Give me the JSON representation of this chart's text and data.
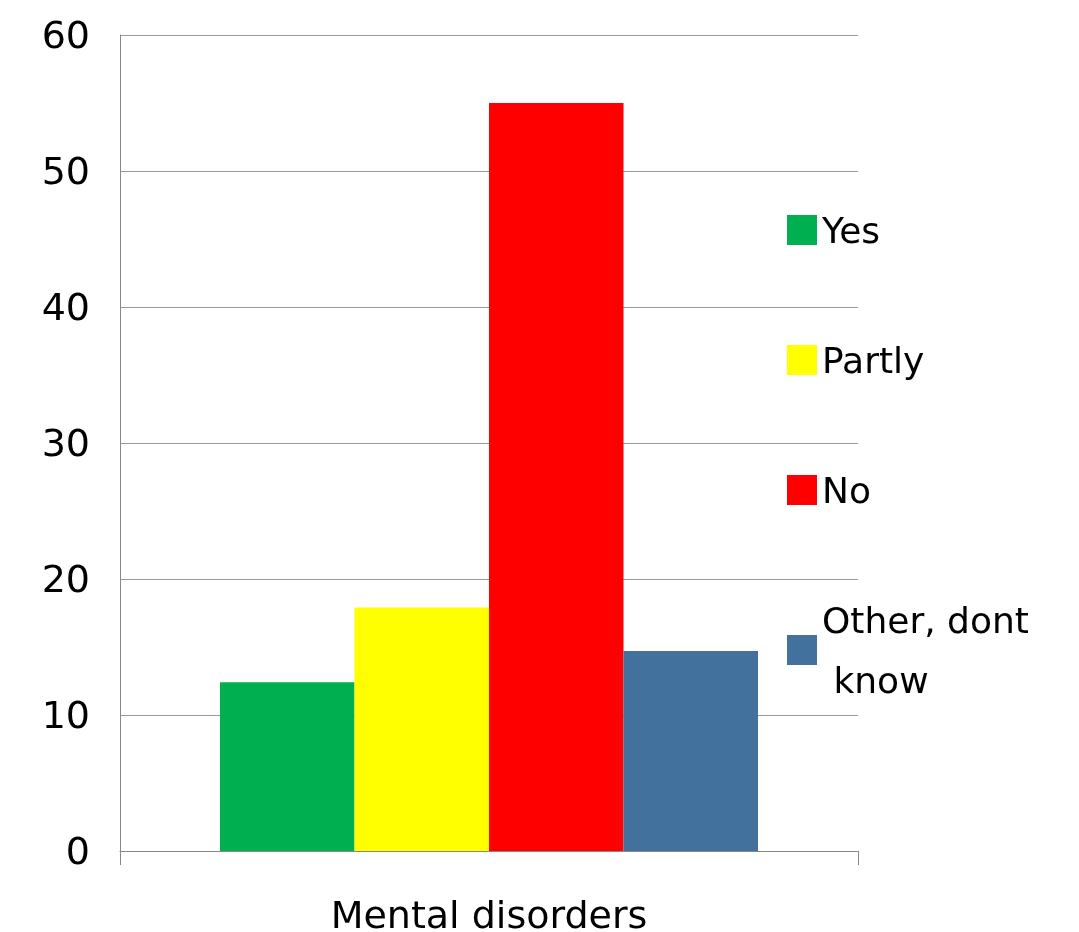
{
  "chart_data": {
    "type": "bar",
    "xlabel": "Mental disorders",
    "categories": [
      null,
      null,
      null,
      null
    ],
    "stacked": true,
    "series": [
      {
        "name": "Yes",
        "color": "#00b050",
        "values": [
          12.4,
          null,
          null,
          null
        ]
      },
      {
        "name": "Partly",
        "color": "#ffff00",
        "values": [
          null,
          17.9,
          null,
          null
        ]
      },
      {
        "name": "No",
        "color": "#ff0000",
        "values": [
          null,
          null,
          55,
          null
        ]
      },
      {
        "name": "Other, dont know",
        "color": "#41719c",
        "values": [
          null,
          null,
          null,
          14.7
        ]
      }
    ],
    "ylim": [
      0,
      60
    ],
    "yticks": [
      0,
      10,
      20,
      30,
      40,
      50,
      60
    ],
    "grid": "y",
    "legend": "right"
  }
}
